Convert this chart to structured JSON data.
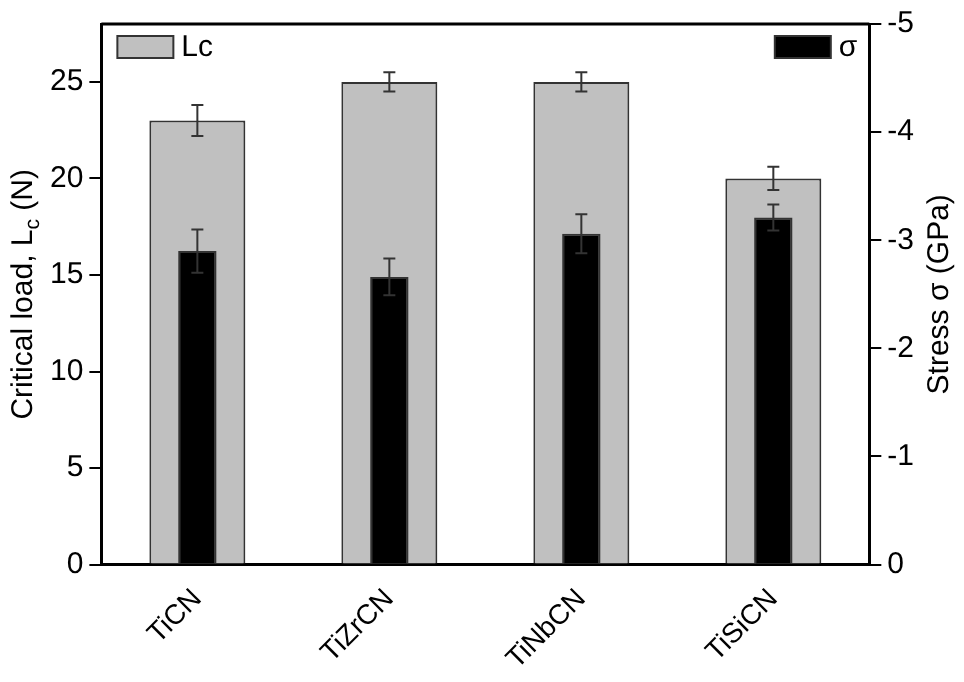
{
  "chart_data": {
    "type": "bar",
    "categories": [
      "TiCN",
      "TiZrCN",
      "TiNbCN",
      "TiSiCN"
    ],
    "ylabel": "Critical load, L$_{c}$ (N)",
    "y2label": "Stress σ (GPa)",
    "ylim": [
      0,
      28
    ],
    "yticks": [
      0,
      5,
      10,
      15,
      20,
      25
    ],
    "y2lim": [
      0,
      -5
    ],
    "y2ticks": [
      0,
      -1,
      -2,
      -3,
      -4,
      -5
    ],
    "legend": "top",
    "grid": false,
    "series": [
      {
        "name": "Lc",
        "color": "#c0c0c0",
        "values": [
          23,
          25,
          25,
          20
        ],
        "errors": [
          0.8,
          0.5,
          0.5,
          0.6
        ]
      },
      {
        "name": "σ",
        "color": "#000000",
        "axis": "y2",
        "values": [
          -2.9,
          -2.66,
          -3.06,
          -3.21
        ],
        "errors": [
          0.2,
          0.17,
          0.18,
          0.12
        ]
      }
    ]
  }
}
